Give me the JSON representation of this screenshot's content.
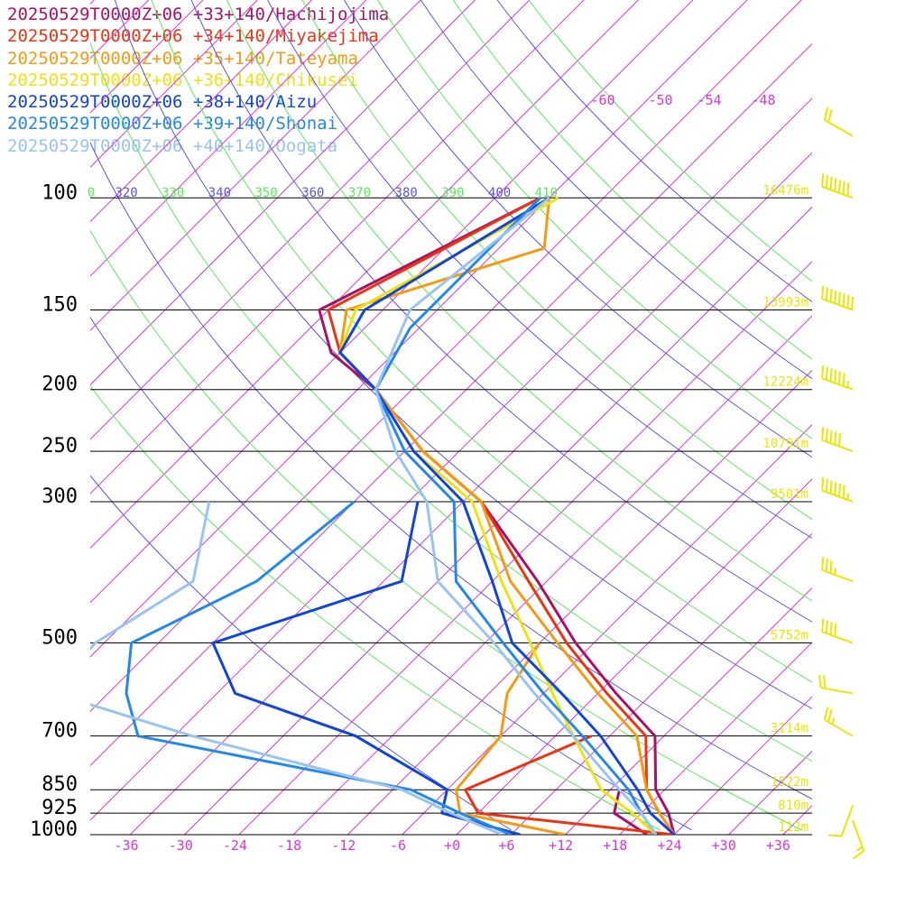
{
  "chart_data": {
    "type": "line",
    "subtype": "skew-T log-P sounding",
    "legend_placement": "top-left",
    "pressure_levels": [
      {
        "p": 100,
        "label": "100",
        "height": "16476m"
      },
      {
        "p": 150,
        "label": "150",
        "height": "13993m"
      },
      {
        "p": 200,
        "label": "200",
        "height": "12224m"
      },
      {
        "p": 250,
        "label": "250",
        "height": "10791m"
      },
      {
        "p": 300,
        "label": "300",
        "height": "9501m"
      },
      {
        "p": 500,
        "label": "500",
        "height": "5752m"
      },
      {
        "p": 700,
        "label": "700",
        "height": "3114m"
      },
      {
        "p": 850,
        "label": "850",
        "height": "1522m"
      },
      {
        "p": 925,
        "label": "925",
        "height": "810m"
      },
      {
        "p": 1000,
        "label": "1000",
        "height": "112m"
      }
    ],
    "temperature_ticks": [
      "-36",
      "-30",
      "-24",
      "-18",
      "-12",
      "-6",
      "+0",
      "+6",
      "+12",
      "+18",
      "+24",
      "+30",
      "+36"
    ],
    "isotherm_upper_labels": [
      "-60",
      "-54",
      "-48"
    ],
    "isotherm_upper_partial": "-50",
    "theta_e_labels": [
      "320",
      "330",
      "340",
      "350",
      "360",
      "370",
      "380",
      "390",
      "400",
      "410"
    ],
    "theta_e_partial": "0",
    "colors": {
      "isotherm": "#dd33dd",
      "dry_adiabat": "#5555ee",
      "moist_adiabat": "#55ee55",
      "isobar": "#000000",
      "height_label": "#e8e800",
      "wind_barb": "#e8e800"
    },
    "series": [
      {
        "name": "20250529T0000Z+06 +33+140/Hachijojima",
        "color": "#aa1166",
        "temperature": [
          [
            100,
            -61
          ],
          [
            150,
            -73
          ],
          [
            175,
            -67
          ],
          [
            200,
            -58
          ],
          [
            250,
            -46
          ],
          [
            300,
            -34
          ],
          [
            400,
            -19
          ],
          [
            500,
            -8
          ],
          [
            600,
            2
          ],
          [
            700,
            11
          ],
          [
            850,
            17
          ],
          [
            925,
            21
          ],
          [
            1000,
            24
          ]
        ],
        "dewpoint": [
          [
            850,
            13
          ],
          [
            925,
            15
          ],
          [
            1000,
            21
          ]
        ]
      },
      {
        "name": "20250529T0000Z+06 +34+140/Miyakejima",
        "color": "#ee3311",
        "temperature": [
          [
            100,
            -61
          ],
          [
            150,
            -72
          ],
          [
            175,
            -66
          ],
          [
            200,
            -58
          ],
          [
            250,
            -46
          ],
          [
            300,
            -34
          ],
          [
            400,
            -20
          ],
          [
            500,
            -9
          ],
          [
            600,
            1
          ],
          [
            700,
            10
          ],
          [
            850,
            16
          ],
          [
            925,
            20
          ],
          [
            1000,
            24
          ]
        ],
        "dewpoint": [
          [
            700,
            4
          ],
          [
            850,
            -4
          ],
          [
            925,
            0
          ],
          [
            1000,
            24
          ]
        ]
      },
      {
        "name": "20250529T0000Z+06 +35+140/Tateyama",
        "color": "#f59a11",
        "temperature": [
          [
            100,
            -60
          ],
          [
            120,
            -55
          ],
          [
            150,
            -70
          ],
          [
            175,
            -66
          ],
          [
            200,
            -58
          ],
          [
            250,
            -46
          ],
          [
            300,
            -34
          ],
          [
            400,
            -22
          ],
          [
            500,
            -10
          ],
          [
            600,
            0
          ],
          [
            700,
            9
          ],
          [
            850,
            16
          ],
          [
            925,
            20
          ],
          [
            1000,
            24
          ]
        ],
        "dewpoint": [
          [
            500,
            -12
          ],
          [
            600,
            -10
          ],
          [
            700,
            -6
          ],
          [
            850,
            -5
          ],
          [
            925,
            -2
          ],
          [
            1000,
            12
          ]
        ]
      },
      {
        "name": "20250529T0000Z+06 +36+140/Chikusei",
        "color": "#f0e211",
        "temperature": [
          [
            100,
            -59
          ],
          [
            150,
            -69
          ],
          [
            175,
            -66
          ],
          [
            200,
            -58
          ],
          [
            250,
            -47
          ],
          [
            300,
            -35
          ],
          [
            400,
            -23
          ],
          [
            500,
            -13
          ],
          [
            600,
            -5
          ],
          [
            700,
            2
          ],
          [
            850,
            11
          ],
          [
            925,
            17
          ],
          [
            1000,
            22
          ]
        ],
        "dewpoint": [
          [
            1000,
            13
          ]
        ]
      },
      {
        "name": "20250529T0000Z+06 +38+140/Aizu",
        "color": "#1144dd",
        "temperature": [
          [
            100,
            -60
          ],
          [
            150,
            -68
          ],
          [
            175,
            -66
          ],
          [
            200,
            -58
          ],
          [
            250,
            -47
          ],
          [
            300,
            -36
          ],
          [
            400,
            -24
          ],
          [
            500,
            -15
          ],
          [
            600,
            -4
          ],
          [
            700,
            5
          ],
          [
            850,
            15
          ],
          [
            925,
            19
          ],
          [
            1000,
            24
          ]
        ],
        "dewpoint": [
          [
            300,
            -41
          ],
          [
            400,
            -34
          ],
          [
            500,
            -48
          ],
          [
            600,
            -40
          ],
          [
            700,
            -22
          ],
          [
            850,
            -6
          ],
          [
            925,
            -4
          ],
          [
            1000,
            7
          ]
        ]
      },
      {
        "name": "20250529T0000Z+06 +39+140/Shonai",
        "color": "#2288ee",
        "temperature": [
          [
            100,
            -61
          ],
          [
            160,
            -61
          ],
          [
            200,
            -58
          ],
          [
            250,
            -48
          ],
          [
            300,
            -37
          ],
          [
            400,
            -28
          ],
          [
            500,
            -16
          ],
          [
            600,
            -6
          ],
          [
            700,
            3
          ],
          [
            850,
            14
          ],
          [
            925,
            18
          ],
          [
            1000,
            22
          ]
        ],
        "dewpoint": [
          [
            300,
            -48
          ],
          [
            400,
            -50
          ],
          [
            500,
            -57
          ],
          [
            600,
            -52
          ],
          [
            700,
            -46
          ],
          [
            850,
            -10
          ],
          [
            925,
            -2
          ],
          [
            1000,
            6
          ]
        ]
      },
      {
        "name": "20250529T0000Z+06 +40+140/Oogata",
        "color": "#99c4f2",
        "temperature": [
          [
            100,
            -60
          ],
          [
            150,
            -63
          ],
          [
            200,
            -58
          ],
          [
            250,
            -49
          ],
          [
            300,
            -40
          ],
          [
            400,
            -30
          ],
          [
            500,
            -17
          ],
          [
            600,
            -7
          ],
          [
            700,
            2
          ],
          [
            850,
            13
          ],
          [
            925,
            18
          ],
          [
            1000,
            22
          ]
        ],
        "dewpoint": [
          [
            300,
            -64
          ],
          [
            400,
            -57
          ],
          [
            500,
            -61
          ],
          [
            600,
            -60
          ],
          [
            700,
            -40
          ],
          [
            850,
            -11
          ],
          [
            925,
            -3
          ],
          [
            1000,
            5
          ]
        ]
      }
    ],
    "wind_barbs": [
      {
        "p": 80,
        "dir": 300,
        "speed_kt": 20
      },
      {
        "p": 100,
        "dir": 290,
        "speed_kt": 70
      },
      {
        "p": 150,
        "dir": 290,
        "speed_kt": 80
      },
      {
        "p": 200,
        "dir": 290,
        "speed_kt": 65
      },
      {
        "p": 250,
        "dir": 290,
        "speed_kt": 50
      },
      {
        "p": 300,
        "dir": 290,
        "speed_kt": 65
      },
      {
        "p": 400,
        "dir": 290,
        "speed_kt": 35
      },
      {
        "p": 500,
        "dir": 290,
        "speed_kt": 40
      },
      {
        "p": 600,
        "dir": 280,
        "speed_kt": 20
      },
      {
        "p": 700,
        "dir": 300,
        "speed_kt": 25
      },
      {
        "p": 900,
        "dir": 200,
        "speed_kt": 10
      },
      {
        "p": 950,
        "dir": 160,
        "speed_kt": 15
      }
    ]
  }
}
